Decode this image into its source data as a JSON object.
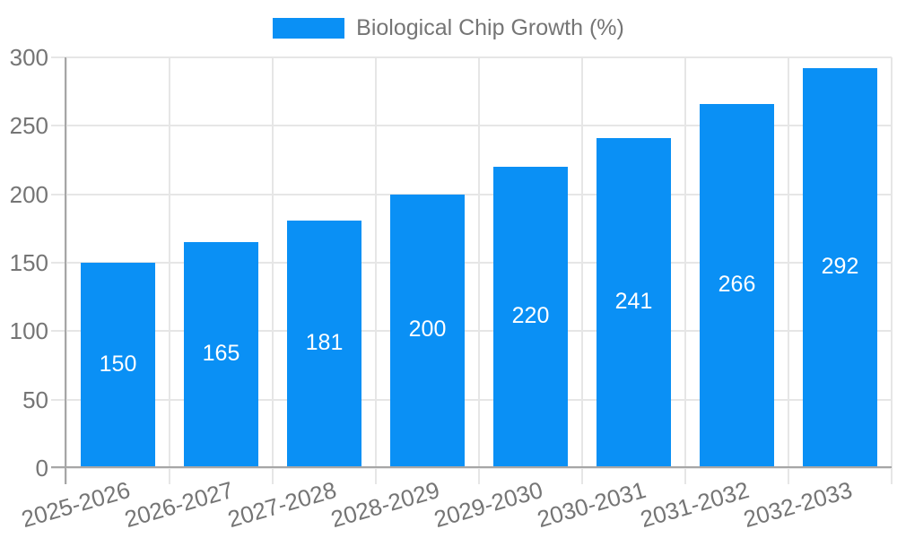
{
  "legend": {
    "label": "Biological Chip Growth (%)"
  },
  "colors": {
    "bar": "#0a90f5",
    "bar_label": "#ffffff",
    "axis_text": "#757575",
    "axis_line": "#a6a6a6",
    "gridline": "#e6e6e6",
    "background": "#ffffff"
  },
  "chart_data": {
    "type": "bar",
    "title": "Biological Chip Growth (%)",
    "categories": [
      "2025-2026",
      "2026-2027",
      "2027-2028",
      "2028-2029",
      "2029-2030",
      "2030-2031",
      "2031-2032",
      "2032-2033"
    ],
    "values": [
      150,
      165,
      181,
      200,
      220,
      241,
      266,
      292
    ],
    "series_name": "Biological Chip Growth (%)",
    "xlabel": "",
    "ylabel": "",
    "ylim": [
      0,
      300
    ],
    "yticks": [
      0,
      50,
      100,
      150,
      200,
      250,
      300
    ],
    "grid": true,
    "legend_position": "top",
    "value_labels": "inside-center"
  }
}
